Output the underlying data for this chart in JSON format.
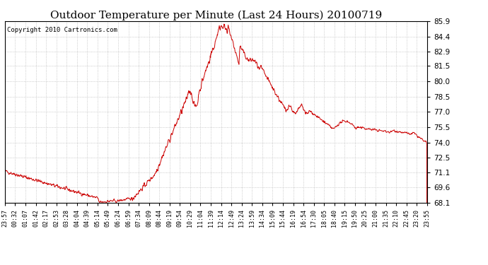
{
  "title": "Outdoor Temperature per Minute (Last 24 Hours) 20100719",
  "copyright_text": "Copyright 2010 Cartronics.com",
  "line_color": "#cc0000",
  "bg_color": "#ffffff",
  "plot_bg_color": "#ffffff",
  "grid_color": "#bbbbbb",
  "ylim": [
    68.1,
    85.9
  ],
  "yticks": [
    68.1,
    69.6,
    71.1,
    72.5,
    74.0,
    75.5,
    77.0,
    78.5,
    80.0,
    81.5,
    82.9,
    84.4,
    85.9
  ],
  "x_tick_labels": [
    "23:57",
    "00:32",
    "01:07",
    "01:42",
    "02:17",
    "02:53",
    "03:28",
    "04:04",
    "04:39",
    "05:14",
    "05:49",
    "06:24",
    "06:59",
    "07:34",
    "08:09",
    "08:44",
    "09:19",
    "09:54",
    "10:29",
    "11:04",
    "11:39",
    "12:14",
    "12:49",
    "13:24",
    "13:59",
    "14:34",
    "15:09",
    "15:44",
    "16:19",
    "16:54",
    "17:30",
    "18:05",
    "18:40",
    "19:15",
    "19:50",
    "20:25",
    "21:00",
    "21:35",
    "22:10",
    "22:45",
    "23:20",
    "23:55"
  ],
  "title_fontsize": 11,
  "tick_fontsize": 7.5,
  "xtick_fontsize": 6,
  "copyright_fontsize": 6.5
}
